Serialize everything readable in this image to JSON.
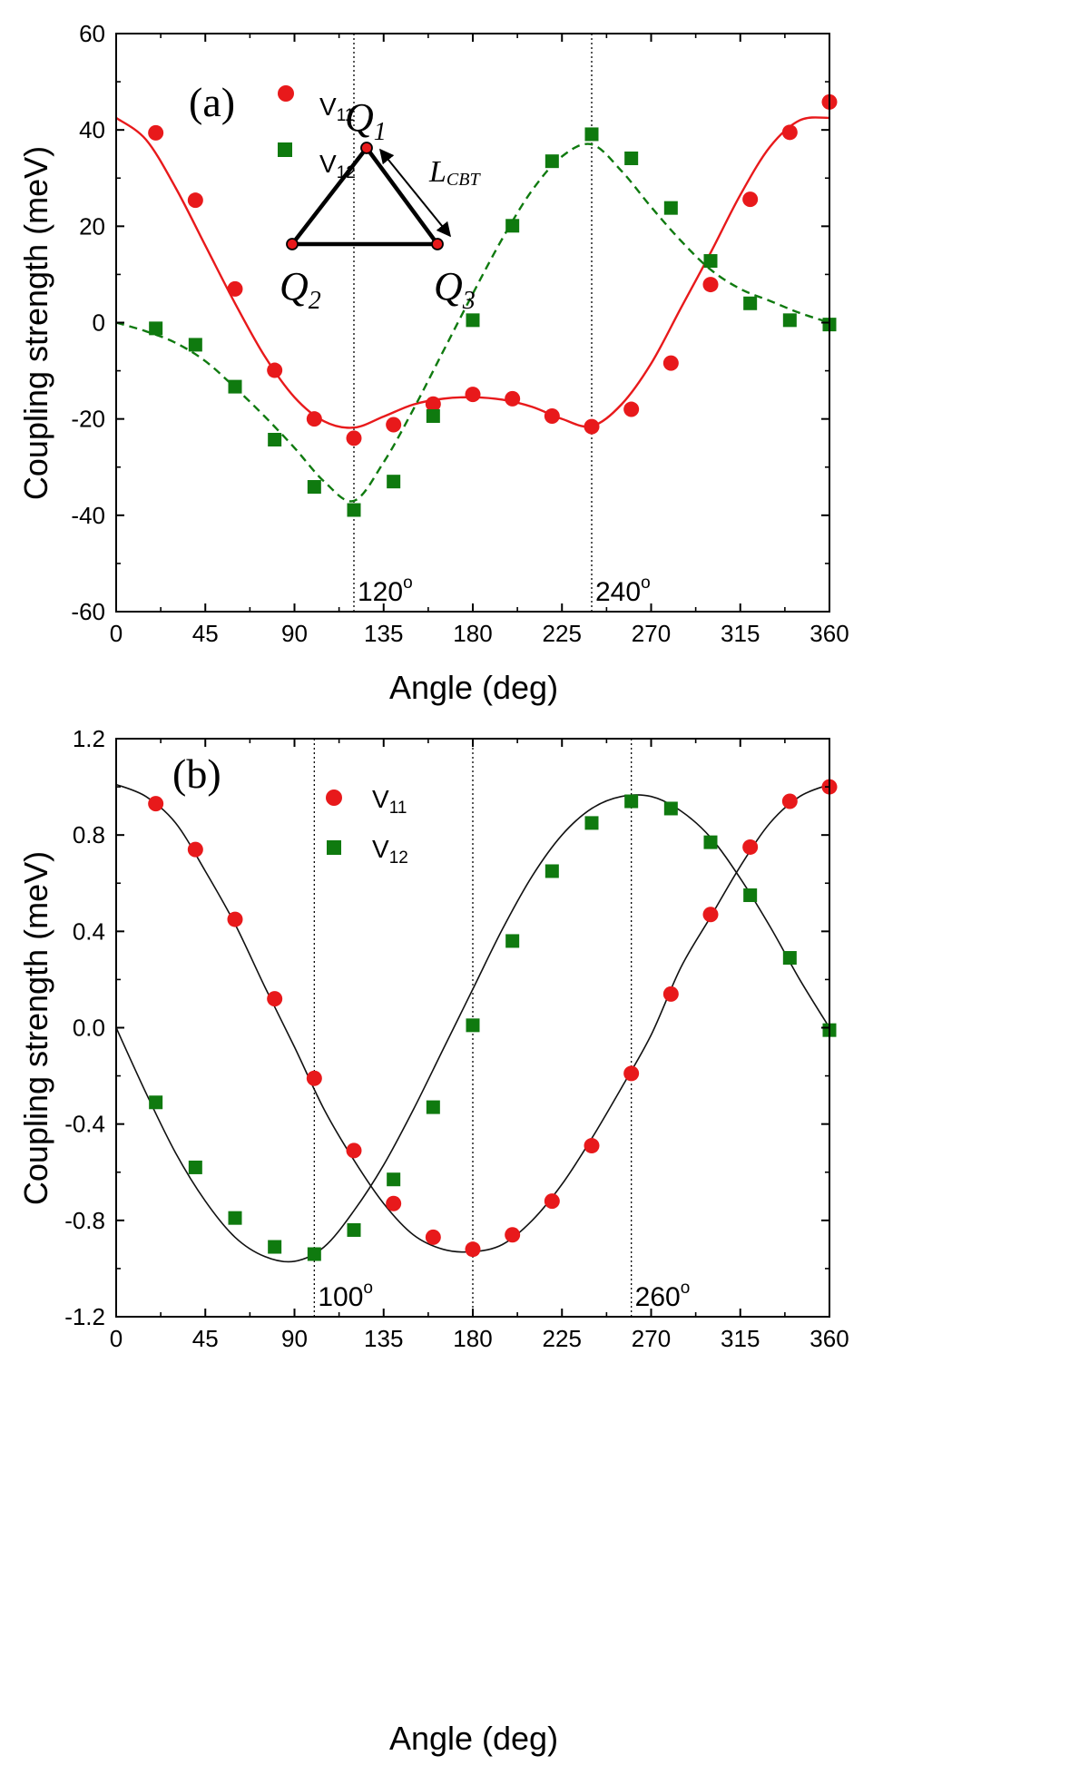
{
  "chart_data": [
    {
      "panel_label": "(a)",
      "type": "scatter",
      "xlabel": "Angle (deg)",
      "ylabel": "Coupling strength (meV)",
      "xlim": [
        0,
        360
      ],
      "ylim": [
        -60,
        60
      ],
      "xticks": [
        "0",
        "45",
        "90",
        "135",
        "180",
        "225",
        "270",
        "315",
        "360"
      ],
      "yticks": [
        "-60",
        "-40",
        "-20",
        "0",
        "20",
        "40",
        "60"
      ],
      "legend": {
        "placement": "top-left",
        "entries": [
          {
            "base": "V",
            "sub": "11"
          },
          {
            "base": "V",
            "sub": "12"
          }
        ]
      },
      "series": [
        {
          "name": "V11",
          "color": "#e8191b",
          "marker": "circle",
          "x": [
            20,
            40,
            60,
            80,
            100,
            120,
            140,
            160,
            180,
            200,
            220,
            240,
            260,
            280,
            300,
            320,
            340,
            360
          ],
          "y": [
            39.4,
            25.4,
            7.0,
            -9.9,
            -20.0,
            -24.0,
            -21.2,
            -16.9,
            -14.9,
            -15.8,
            -19.4,
            -21.6,
            -18.0,
            -8.4,
            7.9,
            25.6,
            39.5,
            45.8
          ],
          "fit": {
            "style": "solid",
            "x": [
              0,
              15,
              30,
              45,
              60,
              75,
              90,
              105,
              120,
              135,
              150,
              165,
              180,
              195,
              210,
              225,
              240,
              255,
              270,
              285,
              300,
              315,
              330,
              345,
              360
            ],
            "y": [
              42.5,
              38.0,
              28.0,
              16.0,
              4.0,
              -7.0,
              -15.5,
              -20.5,
              -21.8,
              -19.5,
              -17.0,
              -15.8,
              -15.5,
              -16.0,
              -17.5,
              -20.0,
              -21.5,
              -17.0,
              -8.5,
              3.0,
              14.5,
              26.5,
              36.5,
              42.0,
              42.5
            ]
          }
        },
        {
          "name": "V12",
          "color": "#0f7a0f",
          "marker": "square",
          "x": [
            20,
            40,
            60,
            80,
            100,
            120,
            140,
            160,
            180,
            200,
            220,
            240,
            260,
            280,
            300,
            320,
            340,
            360
          ],
          "y": [
            -1.2,
            -4.6,
            -13.3,
            -24.3,
            -34.1,
            -38.9,
            -33.0,
            -19.4,
            0.5,
            20.1,
            33.5,
            39.1,
            34.1,
            23.8,
            12.8,
            4.0,
            0.5,
            -0.4
          ],
          "fit": {
            "style": "dashed",
            "x": [
              0,
              15,
              30,
              45,
              60,
              75,
              90,
              105,
              120,
              135,
              150,
              165,
              180,
              195,
              210,
              225,
              240,
              255,
              270,
              285,
              300,
              315,
              330,
              345,
              360
            ],
            "y": [
              0,
              -1.8,
              -4.2,
              -8.0,
              -13.5,
              -19.5,
              -26.0,
              -33.0,
              -37.0,
              -29.0,
              -18.0,
              -6.0,
              6.0,
              17.5,
              27.5,
              34.5,
              37.0,
              31.5,
              24.0,
              17.0,
              11.0,
              7.0,
              4.5,
              2.0,
              0
            ]
          }
        }
      ],
      "vlines": [
        {
          "x": 120,
          "label": "120",
          "unit": "o"
        },
        {
          "x": 240,
          "label": "240",
          "unit": "o"
        }
      ],
      "inset": {
        "vertices": [
          {
            "name": "Q",
            "sub": "1"
          },
          {
            "name": "Q",
            "sub": "2"
          },
          {
            "name": "Q",
            "sub": "3"
          }
        ],
        "length_label": {
          "name": "L",
          "sub": "CBT"
        }
      }
    },
    {
      "panel_label": "(b)",
      "type": "scatter",
      "xlabel": "Angle (deg)",
      "ylabel": "Coupling strength (meV)",
      "xlim": [
        0,
        360
      ],
      "ylim": [
        -1.2,
        1.2
      ],
      "xticks": [
        "0",
        "45",
        "90",
        "135",
        "180",
        "225",
        "270",
        "315",
        "360"
      ],
      "yticks": [
        "-1.2",
        "-0.8",
        "-0.4",
        "0.0",
        "0.4",
        "0.8",
        "1.2"
      ],
      "legend": {
        "placement": "top-center",
        "entries": [
          {
            "base": "V",
            "sub": "11"
          },
          {
            "base": "V",
            "sub": "12"
          }
        ]
      },
      "series": [
        {
          "name": "V11",
          "color": "#e8191b",
          "marker": "circle",
          "x": [
            20,
            40,
            60,
            80,
            100,
            120,
            140,
            160,
            180,
            200,
            220,
            240,
            260,
            280,
            300,
            320,
            340,
            360
          ],
          "y": [
            0.93,
            0.74,
            0.45,
            0.12,
            -0.21,
            -0.51,
            -0.73,
            -0.87,
            -0.92,
            -0.86,
            -0.72,
            -0.49,
            -0.19,
            0.14,
            0.47,
            0.75,
            0.94,
            1.0
          ],
          "fit": {
            "style": "solid",
            "x": [
              0,
              15,
              30,
              45,
              60,
              75,
              90,
              105,
              120,
              135,
              150,
              165,
              180,
              195,
              210,
              225,
              240,
              255,
              270,
              285,
              300,
              315,
              330,
              345,
              360
            ],
            "y": [
              1.01,
              0.96,
              0.85,
              0.65,
              0.43,
              0.17,
              -0.08,
              -0.34,
              -0.55,
              -0.73,
              -0.86,
              -0.92,
              -0.93,
              -0.9,
              -0.8,
              -0.65,
              -0.46,
              -0.25,
              -0.03,
              0.25,
              0.46,
              0.67,
              0.85,
              0.96,
              1.01
            ]
          }
        },
        {
          "name": "V12",
          "color": "#0f7a0f",
          "marker": "square",
          "x": [
            20,
            40,
            60,
            80,
            100,
            120,
            140,
            160,
            180,
            200,
            220,
            240,
            260,
            280,
            300,
            320,
            340,
            360
          ],
          "y": [
            -0.31,
            -0.58,
            -0.79,
            -0.91,
            -0.94,
            -0.84,
            -0.63,
            -0.33,
            0.01,
            0.36,
            0.65,
            0.85,
            0.94,
            0.91,
            0.77,
            0.55,
            0.29,
            -0.01
          ],
          "fit": {
            "style": "solid",
            "x": [
              0,
              15,
              30,
              45,
              60,
              75,
              90,
              105,
              120,
              135,
              150,
              165,
              180,
              195,
              210,
              225,
              240,
              255,
              270,
              285,
              300,
              315,
              330,
              345,
              360
            ],
            "y": [
              0,
              -0.27,
              -0.52,
              -0.72,
              -0.87,
              -0.95,
              -0.97,
              -0.91,
              -0.76,
              -0.57,
              -0.34,
              -0.09,
              0.16,
              0.41,
              0.63,
              0.8,
              0.91,
              0.96,
              0.96,
              0.9,
              0.79,
              0.62,
              0.42,
              0.2,
              0
            ]
          }
        }
      ],
      "vlines": [
        {
          "x": 100,
          "label": "100",
          "unit": "o"
        },
        {
          "x": 180,
          "label": "",
          "unit": ""
        },
        {
          "x": 260,
          "label": "260",
          "unit": "o"
        }
      ]
    }
  ]
}
